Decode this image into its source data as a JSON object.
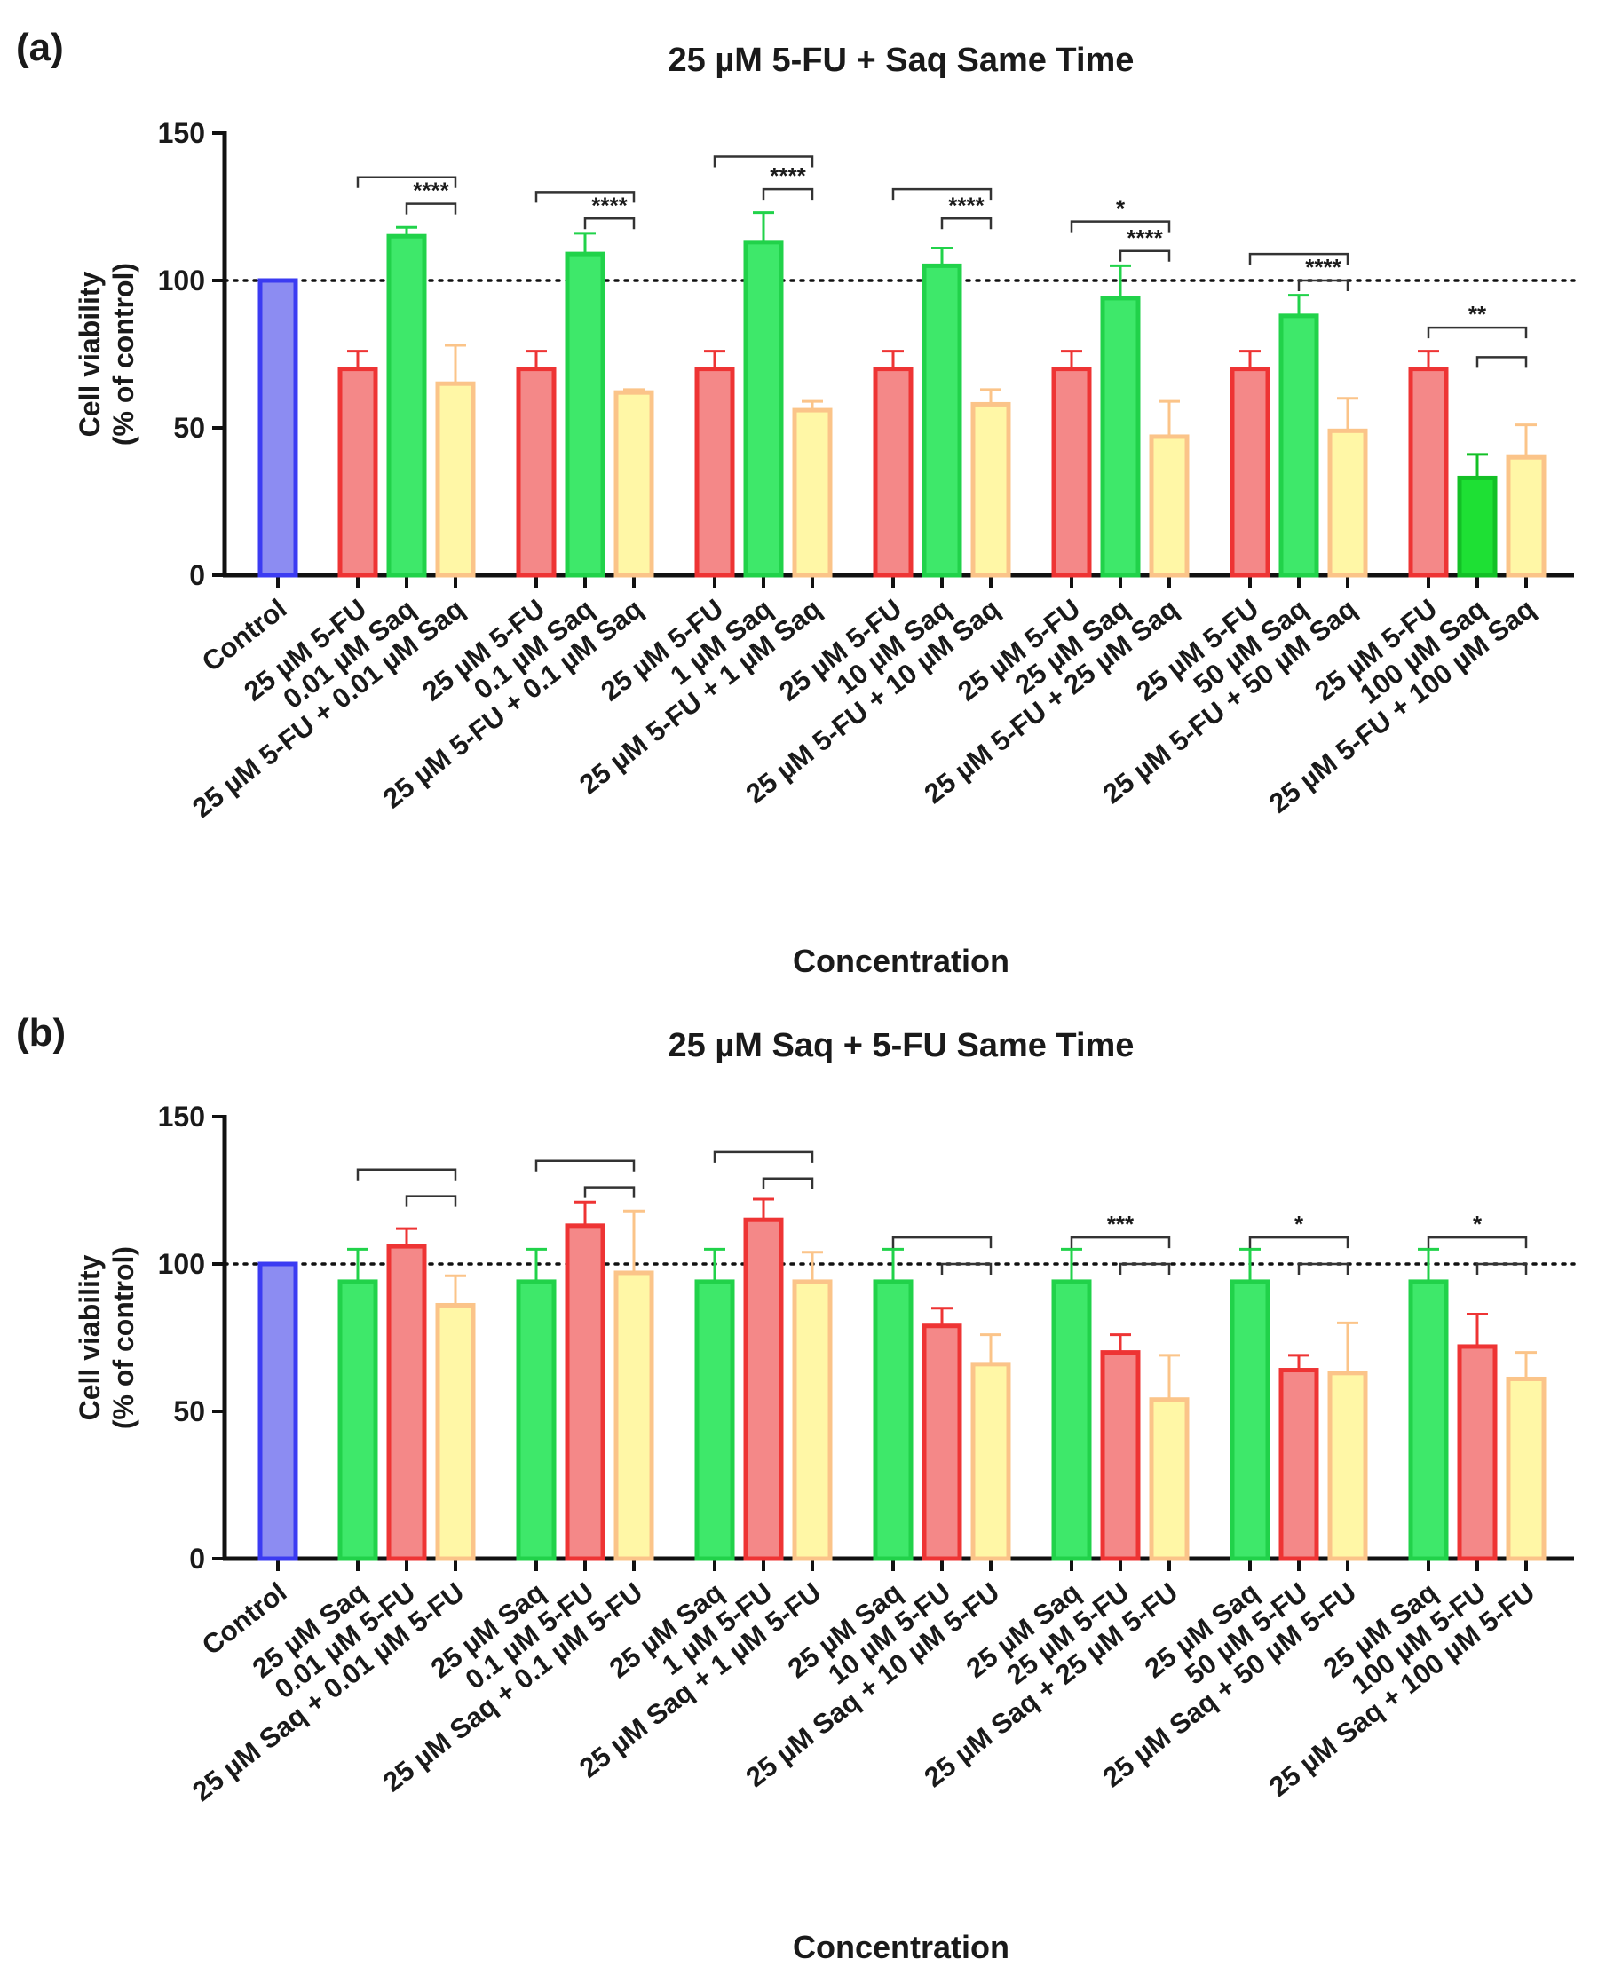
{
  "chart_data": [
    {
      "panel_label": "(a)",
      "type": "bar",
      "title": "25 µM 5-FU + Saq Same Time",
      "xlabel": "Concentration",
      "ylabel_lines": [
        "Cell viability",
        "(% of control)"
      ],
      "ylim": [
        0,
        150
      ],
      "yticks": [
        "0",
        "50",
        "100",
        "150"
      ],
      "reference_line": 100,
      "categories": [
        "Control",
        "25 µM 5-FU",
        "0.01 µM Saq",
        "25 µM 5-FU + 0.01 µM Saq",
        "25 µM 5-FU",
        "0.1 µM Saq",
        "25 µM 5-FU + 0.1 µM Saq",
        "25 µM 5-FU",
        "1 µM Saq",
        "25 µM 5-FU + 1 µM Saq",
        "25 µM 5-FU",
        "10 µM Saq",
        "25 µM 5-FU + 10 µM Saq",
        "25 µM 5-FU",
        "25 µM Saq",
        "25 µM 5-FU + 25 µM Saq",
        "25 µM 5-FU",
        "50 µM Saq",
        "25 µM 5-FU + 50 µM Saq",
        "25 µM 5-FU",
        "100 µM Saq",
        "25 µM 5-FU + 100 µM Saq"
      ],
      "values": [
        100,
        70,
        115,
        65,
        70,
        109,
        62,
        70,
        113,
        56,
        70,
        105,
        58,
        70,
        94,
        47,
        70,
        88,
        49,
        70,
        33,
        40
      ],
      "errors": [
        0,
        6,
        3,
        13,
        6,
        7,
        1,
        6,
        10,
        3,
        6,
        6,
        5,
        6,
        11,
        12,
        6,
        7,
        11,
        6,
        8,
        11
      ],
      "bar_kinds": [
        "control",
        "fu",
        "saq",
        "combo",
        "fu",
        "saq",
        "combo",
        "fu",
        "saq",
        "combo",
        "fu",
        "saq",
        "combo",
        "fu",
        "saq",
        "combo",
        "fu",
        "saq",
        "combo",
        "fu",
        "saq_dark",
        "combo"
      ],
      "significance": [
        {
          "from": 1,
          "to": 3,
          "y": 135,
          "label": ""
        },
        {
          "from": 2,
          "to": 3,
          "y": 126,
          "label": "****"
        },
        {
          "from": 4,
          "to": 6,
          "y": 130,
          "label": ""
        },
        {
          "from": 5,
          "to": 6,
          "y": 121,
          "label": "****"
        },
        {
          "from": 7,
          "to": 9,
          "y": 142,
          "label": ""
        },
        {
          "from": 8,
          "to": 9,
          "y": 131,
          "label": "****"
        },
        {
          "from": 10,
          "to": 12,
          "y": 131,
          "label": ""
        },
        {
          "from": 11,
          "to": 12,
          "y": 121,
          "label": "****"
        },
        {
          "from": 13,
          "to": 15,
          "y": 120,
          "label": "*"
        },
        {
          "from": 14,
          "to": 15,
          "y": 110,
          "label": "****"
        },
        {
          "from": 16,
          "to": 18,
          "y": 109,
          "label": ""
        },
        {
          "from": 17,
          "to": 18,
          "y": 100,
          "label": "****"
        },
        {
          "from": 19,
          "to": 21,
          "y": 84,
          "label": "**"
        },
        {
          "from": 20,
          "to": 21,
          "y": 74,
          "label": ""
        }
      ]
    },
    {
      "panel_label": "(b)",
      "type": "bar",
      "title": "25 µM Saq + 5-FU Same Time",
      "xlabel": "Concentration",
      "ylabel_lines": [
        "Cell viability",
        "(% of control)"
      ],
      "ylim": [
        0,
        150
      ],
      "yticks": [
        "0",
        "50",
        "100",
        "150"
      ],
      "reference_line": 100,
      "categories": [
        "Control",
        "25 µM Saq",
        "0.01 µM 5-FU",
        "25 µM Saq + 0.01 µM 5-FU",
        "25 µM Saq",
        "0.1 µM 5-FU",
        "25 µM Saq + 0.1 µM 5-FU",
        "25 µM Saq",
        "1 µM 5-FU",
        "25 µM Saq + 1 µM 5-FU",
        "25 µM Saq",
        "10 µM 5-FU",
        "25 µM Saq + 10 µM 5-FU",
        "25 µM Saq",
        "25 µM 5-FU",
        "25 µM Saq + 25 µM 5-FU",
        "25 µM Saq",
        "50 µM 5-FU",
        "25 µM Saq + 50 µM 5-FU",
        "25 µM Saq",
        "100 µM 5-FU",
        "25 µM Saq + 100 µM 5-FU"
      ],
      "values": [
        100,
        94,
        106,
        86,
        94,
        113,
        97,
        94,
        115,
        94,
        94,
        79,
        66,
        94,
        70,
        54,
        94,
        64,
        63,
        94,
        72,
        61
      ],
      "errors": [
        0,
        11,
        6,
        10,
        11,
        8,
        21,
        11,
        7,
        10,
        11,
        6,
        10,
        11,
        6,
        15,
        11,
        5,
        17,
        11,
        11,
        9
      ],
      "bar_kinds": [
        "control",
        "saq",
        "fu",
        "combo",
        "saq",
        "fu",
        "combo",
        "saq",
        "fu",
        "combo",
        "saq",
        "fu",
        "combo",
        "saq",
        "fu",
        "combo",
        "saq",
        "fu",
        "combo",
        "saq",
        "fu",
        "combo"
      ],
      "significance": [
        {
          "from": 1,
          "to": 3,
          "y": 132,
          "label": ""
        },
        {
          "from": 2,
          "to": 3,
          "y": 123,
          "label": ""
        },
        {
          "from": 4,
          "to": 6,
          "y": 135,
          "label": ""
        },
        {
          "from": 5,
          "to": 6,
          "y": 126,
          "label": ""
        },
        {
          "from": 7,
          "to": 9,
          "y": 138,
          "label": ""
        },
        {
          "from": 8,
          "to": 9,
          "y": 129,
          "label": ""
        },
        {
          "from": 10,
          "to": 12,
          "y": 109,
          "label": ""
        },
        {
          "from": 11,
          "to": 12,
          "y": 100,
          "label": ""
        },
        {
          "from": 13,
          "to": 15,
          "y": 109,
          "label": "***"
        },
        {
          "from": 14,
          "to": 15,
          "y": 100,
          "label": ""
        },
        {
          "from": 16,
          "to": 18,
          "y": 109,
          "label": "*"
        },
        {
          "from": 17,
          "to": 18,
          "y": 100,
          "label": ""
        },
        {
          "from": 19,
          "to": 21,
          "y": 109,
          "label": "*"
        },
        {
          "from": 20,
          "to": 21,
          "y": 100,
          "label": ""
        }
      ]
    }
  ],
  "palette": {
    "control": {
      "stroke": "#3b3bf2",
      "fill": "#8c8cf2"
    },
    "fu": {
      "stroke": "#ee3434",
      "fill": "#f48888"
    },
    "saq": {
      "stroke": "#21d24a",
      "fill": "#3ee86a"
    },
    "saq_dark": {
      "stroke": "#13c026",
      "fill": "#1ee034"
    },
    "combo": {
      "stroke": "#fbc489",
      "fill": "#fff7a6"
    }
  }
}
